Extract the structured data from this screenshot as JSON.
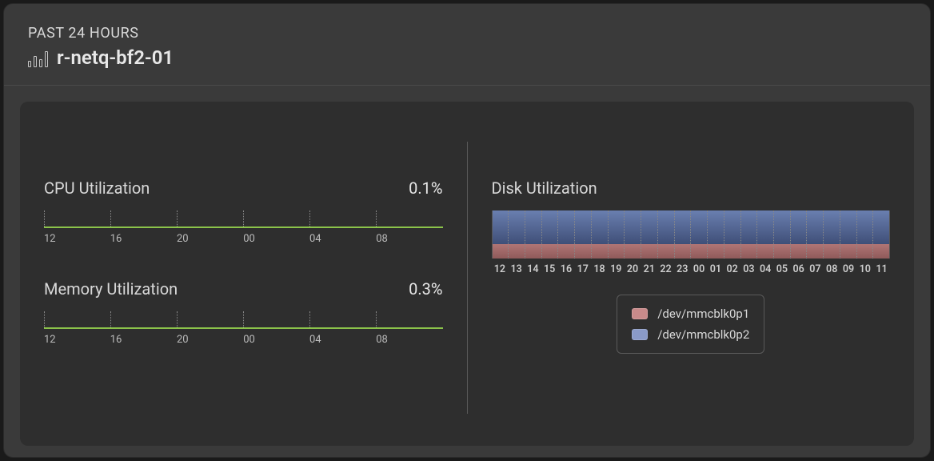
{
  "header": {
    "subtitle": "PAST 24 HOURS",
    "title": "r-netq-bf2-01"
  },
  "colors": {
    "card_bg": "#3a3a3a",
    "panel_bg": "#2e2e2e",
    "text": "#d8d8d8",
    "line": "#8bc34a",
    "disk_top_band": "#5a6fa0",
    "disk_top_band_grad_bottom": "#3f4f78",
    "disk_bottom_band": "#a86b6b",
    "grid": "#888888"
  },
  "cpu": {
    "title": "CPU Utilization",
    "value": "0.1%",
    "line_color": "#8bc34a",
    "ticks": [
      0,
      16.6,
      33.3,
      50,
      66.6,
      83.3
    ],
    "axis_labels": [
      "12",
      "16",
      "20",
      "00",
      "04",
      "08"
    ],
    "axis_positions_pct": [
      0,
      16.6,
      33.3,
      50,
      66.6,
      83.3
    ]
  },
  "memory": {
    "title": "Memory Utilization",
    "value": "0.3%",
    "line_color": "#8bc34a",
    "ticks": [
      0,
      16.6,
      33.3,
      50,
      66.6,
      83.3
    ],
    "axis_labels": [
      "12",
      "16",
      "20",
      "00",
      "04",
      "08"
    ],
    "axis_positions_pct": [
      0,
      16.6,
      33.3,
      50,
      66.6,
      83.3
    ]
  },
  "disk": {
    "title": "Disk Utilization",
    "bands": [
      {
        "name": "/dev/mmcblk0p2",
        "color_top": "#6a7fb0",
        "color_bottom": "#3f4f78",
        "top_pct": 0,
        "height_pct": 70
      },
      {
        "name": "/dev/mmcblk0p1",
        "color_top": "#b07575",
        "color_bottom": "#8f5a5a",
        "top_pct": 70,
        "height_pct": 30
      }
    ],
    "axis_labels": [
      "12",
      "13",
      "14",
      "15",
      "16",
      "17",
      "18",
      "19",
      "20",
      "21",
      "22",
      "23",
      "00",
      "01",
      "02",
      "03",
      "04",
      "05",
      "06",
      "07",
      "08",
      "09",
      "10",
      "11"
    ],
    "legend": [
      {
        "label": "/dev/mmcblk0p1",
        "color": "#c88a8a"
      },
      {
        "label": "/dev/mmcblk0p2",
        "color": "#8a9ac8"
      }
    ]
  }
}
